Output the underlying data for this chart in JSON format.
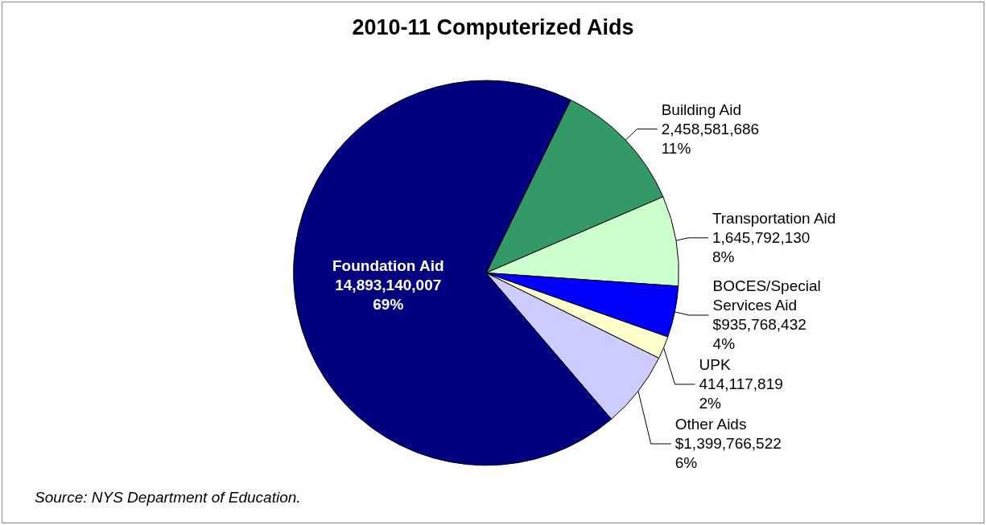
{
  "chart_data": {
    "type": "pie",
    "title": "2010-11 Computerized Aids",
    "categories": [
      "Building Aid",
      "Transportation Aid",
      "BOCES/Special Services Aid",
      "UPK",
      "Other Aids",
      "Foundation Aid"
    ],
    "values": [
      2458581686,
      1645792130,
      935768432,
      414117819,
      1399766522,
      14893140007
    ],
    "colors": [
      "#339966",
      "#ccffcc",
      "#0000ff",
      "#ffffcc",
      "#ccccff",
      "#000080"
    ],
    "value_labels": [
      "2,458,581,686\n11%",
      "1,645,792,130\n8%",
      "$935,768,432\n4%",
      "414,117,819\n2%",
      "$1,399,766,522\n6%",
      "14,893,140,007\n69%"
    ],
    "annotations": [
      "Source: NYS Department of Education."
    ],
    "legend": false
  }
}
